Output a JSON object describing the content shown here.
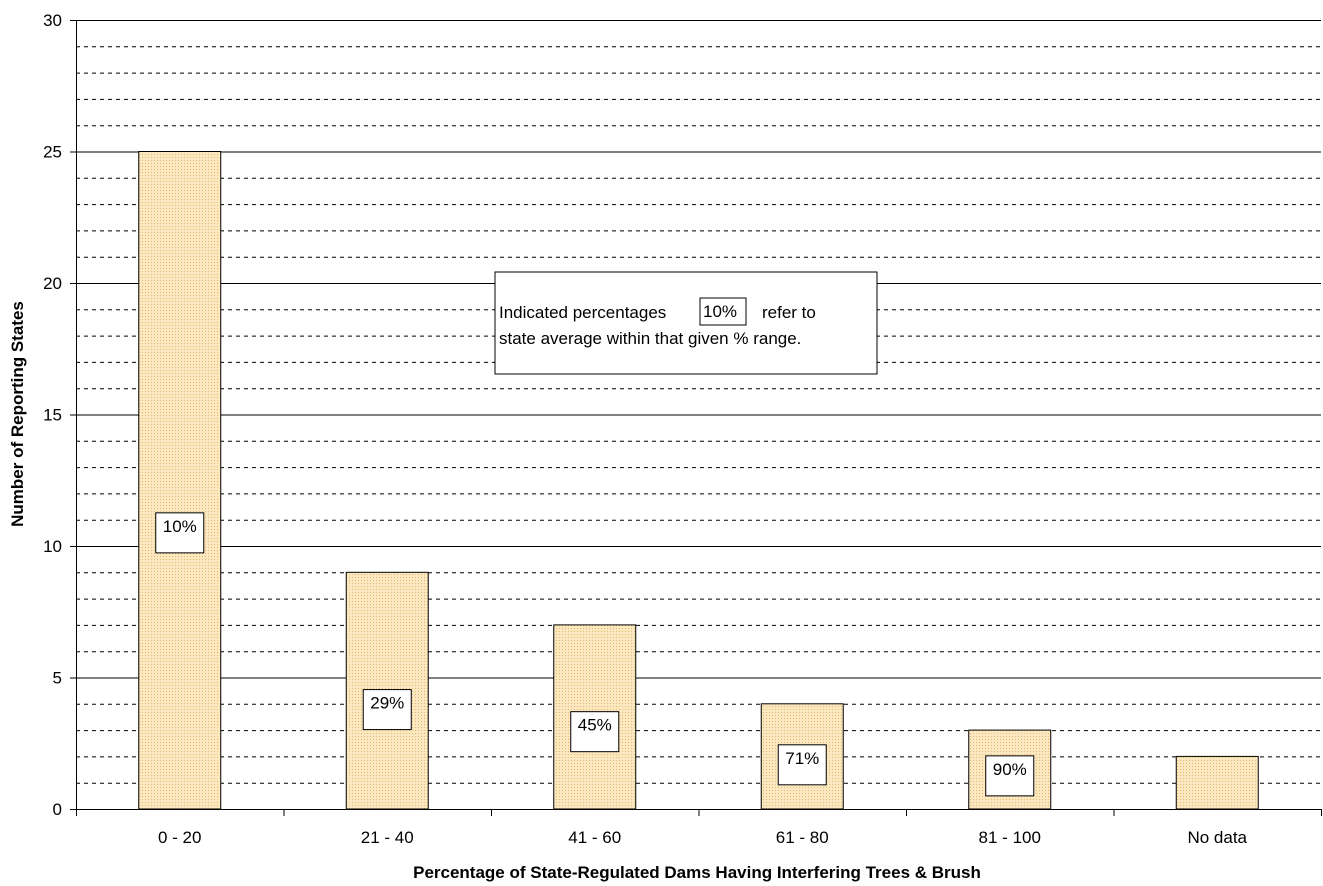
{
  "chart_data": {
    "type": "bar",
    "categories": [
      "0 - 20",
      "21 - 40",
      "41 - 60",
      "61 - 80",
      "81 - 100",
      "No data"
    ],
    "values": [
      25,
      9,
      7,
      4,
      3,
      2
    ],
    "bar_labels": [
      "10%",
      "29%",
      "45%",
      "71%",
      "90%",
      ""
    ],
    "xlabel": "Percentage of State-Regulated Dams Having Interfering Trees & Brush",
    "ylabel": "Number of Reporting States",
    "ylim": [
      0,
      30
    ],
    "yticks": [
      0,
      5,
      10,
      15,
      20,
      25,
      30
    ],
    "minor_gridline_step": 1,
    "grid": true,
    "legend": "none",
    "colors": {
      "bar_fill": "#fce8c0",
      "bar_dots": "#e8b86a",
      "bar_edge": "#000000"
    },
    "annotation": {
      "line1_prefix": "Indicated percentages",
      "sample_label": "10%",
      "line1_suffix": "refer to",
      "line2": "state average within that given % range."
    }
  }
}
